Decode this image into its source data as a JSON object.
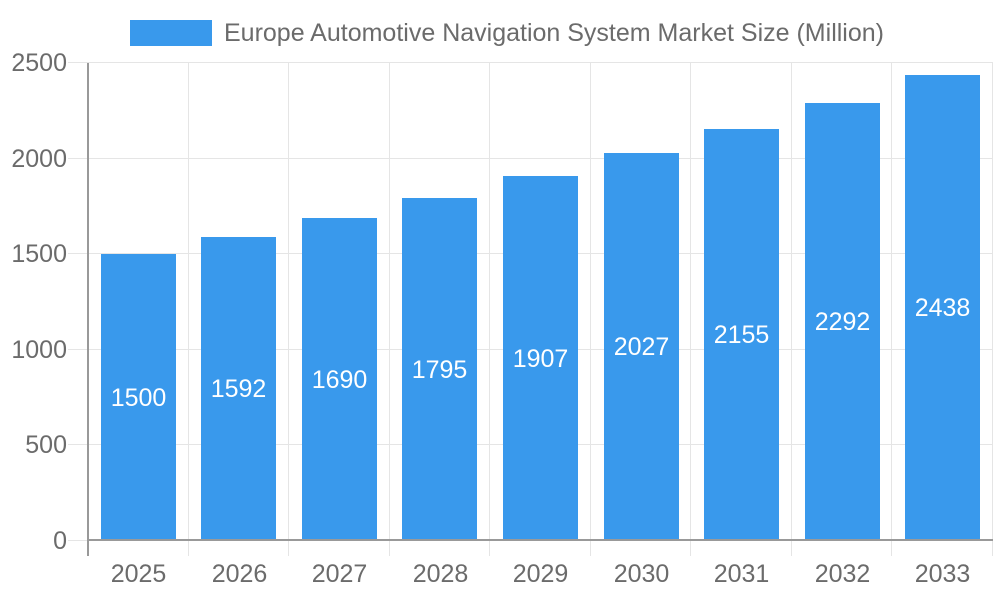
{
  "legend": {
    "label": "Europe Automotive Navigation System Market Size (Million)"
  },
  "chart_data": {
    "type": "bar",
    "title": "Europe Automotive Navigation System Market Size (Million)",
    "categories": [
      "2025",
      "2026",
      "2027",
      "2028",
      "2029",
      "2030",
      "2031",
      "2032",
      "2033"
    ],
    "values": [
      1500,
      1592,
      1690,
      1795,
      1907,
      2027,
      2155,
      2292,
      2438
    ],
    "xlabel": "",
    "ylabel": "",
    "ylim": [
      0,
      2500
    ],
    "y_ticks": [
      0,
      500,
      1000,
      1500,
      2000,
      2500
    ],
    "grid": true,
    "legend_position": "top",
    "bar_labels_inside": true,
    "colors": {
      "bar": "#3999EC",
      "bar_label": "#ffffff",
      "axis_text": "#6b6b6b",
      "grid_line": "#e5e5e5",
      "axis_line": "#999999"
    }
  }
}
